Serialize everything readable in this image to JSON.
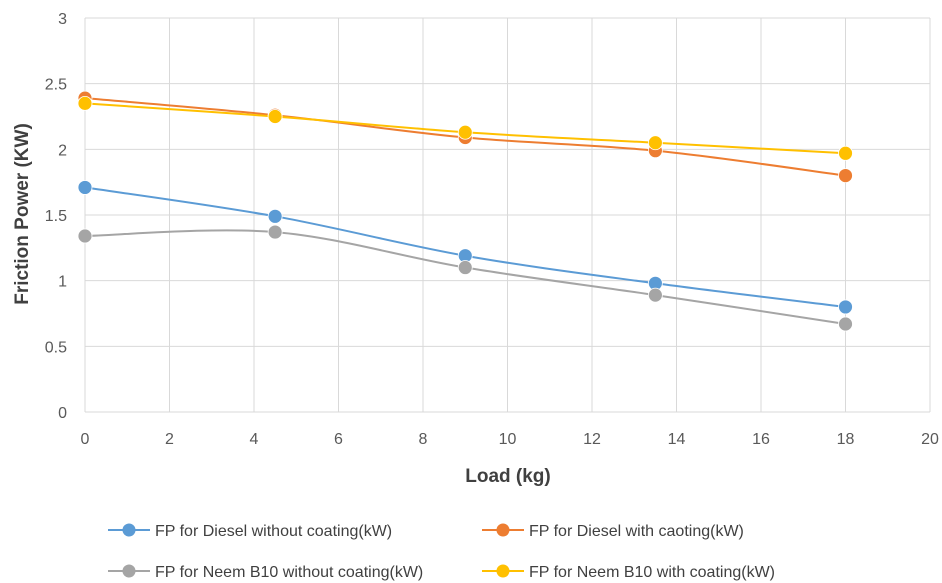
{
  "chart_data": {
    "type": "line",
    "title": "",
    "xlabel": "Load (kg)",
    "ylabel": "Friction Power (KW)",
    "xlim": [
      0,
      20
    ],
    "ylim": [
      0,
      3
    ],
    "x_ticks": [
      0,
      2,
      4,
      6,
      8,
      10,
      12,
      14,
      16,
      18,
      20
    ],
    "y_ticks": [
      0,
      0.5,
      1,
      1.5,
      2,
      2.5,
      3
    ],
    "grid": true,
    "legend_position": "bottom",
    "x": [
      0,
      4.5,
      9,
      13.5,
      18
    ],
    "series": [
      {
        "name": "FP for Diesel without coating(kW)",
        "color": "#5B9BD5",
        "values": [
          1.71,
          1.49,
          1.19,
          0.98,
          0.8
        ]
      },
      {
        "name": "FP for Diesel with caoting(kW)",
        "color": "#ED7D31",
        "values": [
          2.39,
          2.26,
          2.09,
          1.99,
          1.8
        ]
      },
      {
        "name": "FP for Neem B10 without coating(kW)",
        "color": "#A5A5A5",
        "values": [
          1.34,
          1.37,
          1.1,
          0.89,
          0.67
        ]
      },
      {
        "name": "FP for Neem B10 with coating(kW)",
        "color": "#FFC000",
        "values": [
          2.35,
          2.25,
          2.13,
          2.05,
          1.97
        ]
      }
    ]
  }
}
